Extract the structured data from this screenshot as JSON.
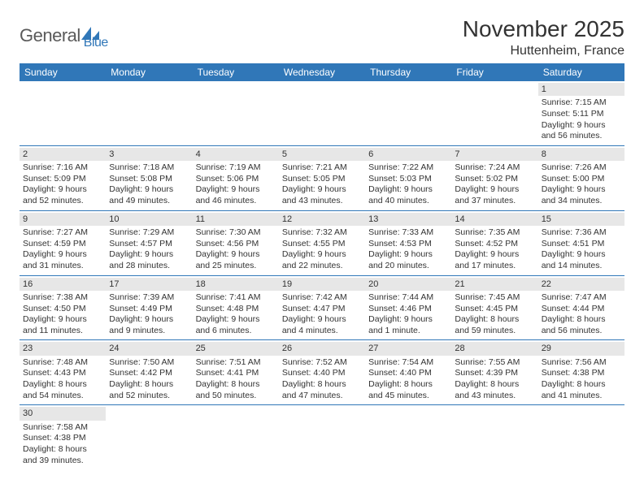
{
  "logo": {
    "text1": "General",
    "text2": "Blue"
  },
  "title": "November 2025",
  "location": "Huttenheim, France",
  "colors": {
    "header_bg": "#3077b8",
    "header_text": "#ffffff",
    "daynum_bg": "#e7e7e7",
    "cell_border": "#3077b8",
    "body_text": "#333333",
    "logo_gray": "#5a5a5a",
    "logo_blue": "#3077b8"
  },
  "weekdays": [
    "Sunday",
    "Monday",
    "Tuesday",
    "Wednesday",
    "Thursday",
    "Friday",
    "Saturday"
  ],
  "weeks": [
    [
      null,
      null,
      null,
      null,
      null,
      null,
      {
        "n": "1",
        "sunrise": "Sunrise: 7:15 AM",
        "sunset": "Sunset: 5:11 PM",
        "day1": "Daylight: 9 hours",
        "day2": "and 56 minutes."
      }
    ],
    [
      {
        "n": "2",
        "sunrise": "Sunrise: 7:16 AM",
        "sunset": "Sunset: 5:09 PM",
        "day1": "Daylight: 9 hours",
        "day2": "and 52 minutes."
      },
      {
        "n": "3",
        "sunrise": "Sunrise: 7:18 AM",
        "sunset": "Sunset: 5:08 PM",
        "day1": "Daylight: 9 hours",
        "day2": "and 49 minutes."
      },
      {
        "n": "4",
        "sunrise": "Sunrise: 7:19 AM",
        "sunset": "Sunset: 5:06 PM",
        "day1": "Daylight: 9 hours",
        "day2": "and 46 minutes."
      },
      {
        "n": "5",
        "sunrise": "Sunrise: 7:21 AM",
        "sunset": "Sunset: 5:05 PM",
        "day1": "Daylight: 9 hours",
        "day2": "and 43 minutes."
      },
      {
        "n": "6",
        "sunrise": "Sunrise: 7:22 AM",
        "sunset": "Sunset: 5:03 PM",
        "day1": "Daylight: 9 hours",
        "day2": "and 40 minutes."
      },
      {
        "n": "7",
        "sunrise": "Sunrise: 7:24 AM",
        "sunset": "Sunset: 5:02 PM",
        "day1": "Daylight: 9 hours",
        "day2": "and 37 minutes."
      },
      {
        "n": "8",
        "sunrise": "Sunrise: 7:26 AM",
        "sunset": "Sunset: 5:00 PM",
        "day1": "Daylight: 9 hours",
        "day2": "and 34 minutes."
      }
    ],
    [
      {
        "n": "9",
        "sunrise": "Sunrise: 7:27 AM",
        "sunset": "Sunset: 4:59 PM",
        "day1": "Daylight: 9 hours",
        "day2": "and 31 minutes."
      },
      {
        "n": "10",
        "sunrise": "Sunrise: 7:29 AM",
        "sunset": "Sunset: 4:57 PM",
        "day1": "Daylight: 9 hours",
        "day2": "and 28 minutes."
      },
      {
        "n": "11",
        "sunrise": "Sunrise: 7:30 AM",
        "sunset": "Sunset: 4:56 PM",
        "day1": "Daylight: 9 hours",
        "day2": "and 25 minutes."
      },
      {
        "n": "12",
        "sunrise": "Sunrise: 7:32 AM",
        "sunset": "Sunset: 4:55 PM",
        "day1": "Daylight: 9 hours",
        "day2": "and 22 minutes."
      },
      {
        "n": "13",
        "sunrise": "Sunrise: 7:33 AM",
        "sunset": "Sunset: 4:53 PM",
        "day1": "Daylight: 9 hours",
        "day2": "and 20 minutes."
      },
      {
        "n": "14",
        "sunrise": "Sunrise: 7:35 AM",
        "sunset": "Sunset: 4:52 PM",
        "day1": "Daylight: 9 hours",
        "day2": "and 17 minutes."
      },
      {
        "n": "15",
        "sunrise": "Sunrise: 7:36 AM",
        "sunset": "Sunset: 4:51 PM",
        "day1": "Daylight: 9 hours",
        "day2": "and 14 minutes."
      }
    ],
    [
      {
        "n": "16",
        "sunrise": "Sunrise: 7:38 AM",
        "sunset": "Sunset: 4:50 PM",
        "day1": "Daylight: 9 hours",
        "day2": "and 11 minutes."
      },
      {
        "n": "17",
        "sunrise": "Sunrise: 7:39 AM",
        "sunset": "Sunset: 4:49 PM",
        "day1": "Daylight: 9 hours",
        "day2": "and 9 minutes."
      },
      {
        "n": "18",
        "sunrise": "Sunrise: 7:41 AM",
        "sunset": "Sunset: 4:48 PM",
        "day1": "Daylight: 9 hours",
        "day2": "and 6 minutes."
      },
      {
        "n": "19",
        "sunrise": "Sunrise: 7:42 AM",
        "sunset": "Sunset: 4:47 PM",
        "day1": "Daylight: 9 hours",
        "day2": "and 4 minutes."
      },
      {
        "n": "20",
        "sunrise": "Sunrise: 7:44 AM",
        "sunset": "Sunset: 4:46 PM",
        "day1": "Daylight: 9 hours",
        "day2": "and 1 minute."
      },
      {
        "n": "21",
        "sunrise": "Sunrise: 7:45 AM",
        "sunset": "Sunset: 4:45 PM",
        "day1": "Daylight: 8 hours",
        "day2": "and 59 minutes."
      },
      {
        "n": "22",
        "sunrise": "Sunrise: 7:47 AM",
        "sunset": "Sunset: 4:44 PM",
        "day1": "Daylight: 8 hours",
        "day2": "and 56 minutes."
      }
    ],
    [
      {
        "n": "23",
        "sunrise": "Sunrise: 7:48 AM",
        "sunset": "Sunset: 4:43 PM",
        "day1": "Daylight: 8 hours",
        "day2": "and 54 minutes."
      },
      {
        "n": "24",
        "sunrise": "Sunrise: 7:50 AM",
        "sunset": "Sunset: 4:42 PM",
        "day1": "Daylight: 8 hours",
        "day2": "and 52 minutes."
      },
      {
        "n": "25",
        "sunrise": "Sunrise: 7:51 AM",
        "sunset": "Sunset: 4:41 PM",
        "day1": "Daylight: 8 hours",
        "day2": "and 50 minutes."
      },
      {
        "n": "26",
        "sunrise": "Sunrise: 7:52 AM",
        "sunset": "Sunset: 4:40 PM",
        "day1": "Daylight: 8 hours",
        "day2": "and 47 minutes."
      },
      {
        "n": "27",
        "sunrise": "Sunrise: 7:54 AM",
        "sunset": "Sunset: 4:40 PM",
        "day1": "Daylight: 8 hours",
        "day2": "and 45 minutes."
      },
      {
        "n": "28",
        "sunrise": "Sunrise: 7:55 AM",
        "sunset": "Sunset: 4:39 PM",
        "day1": "Daylight: 8 hours",
        "day2": "and 43 minutes."
      },
      {
        "n": "29",
        "sunrise": "Sunrise: 7:56 AM",
        "sunset": "Sunset: 4:38 PM",
        "day1": "Daylight: 8 hours",
        "day2": "and 41 minutes."
      }
    ],
    [
      {
        "n": "30",
        "sunrise": "Sunrise: 7:58 AM",
        "sunset": "Sunset: 4:38 PM",
        "day1": "Daylight: 8 hours",
        "day2": "and 39 minutes."
      },
      null,
      null,
      null,
      null,
      null,
      null
    ]
  ]
}
